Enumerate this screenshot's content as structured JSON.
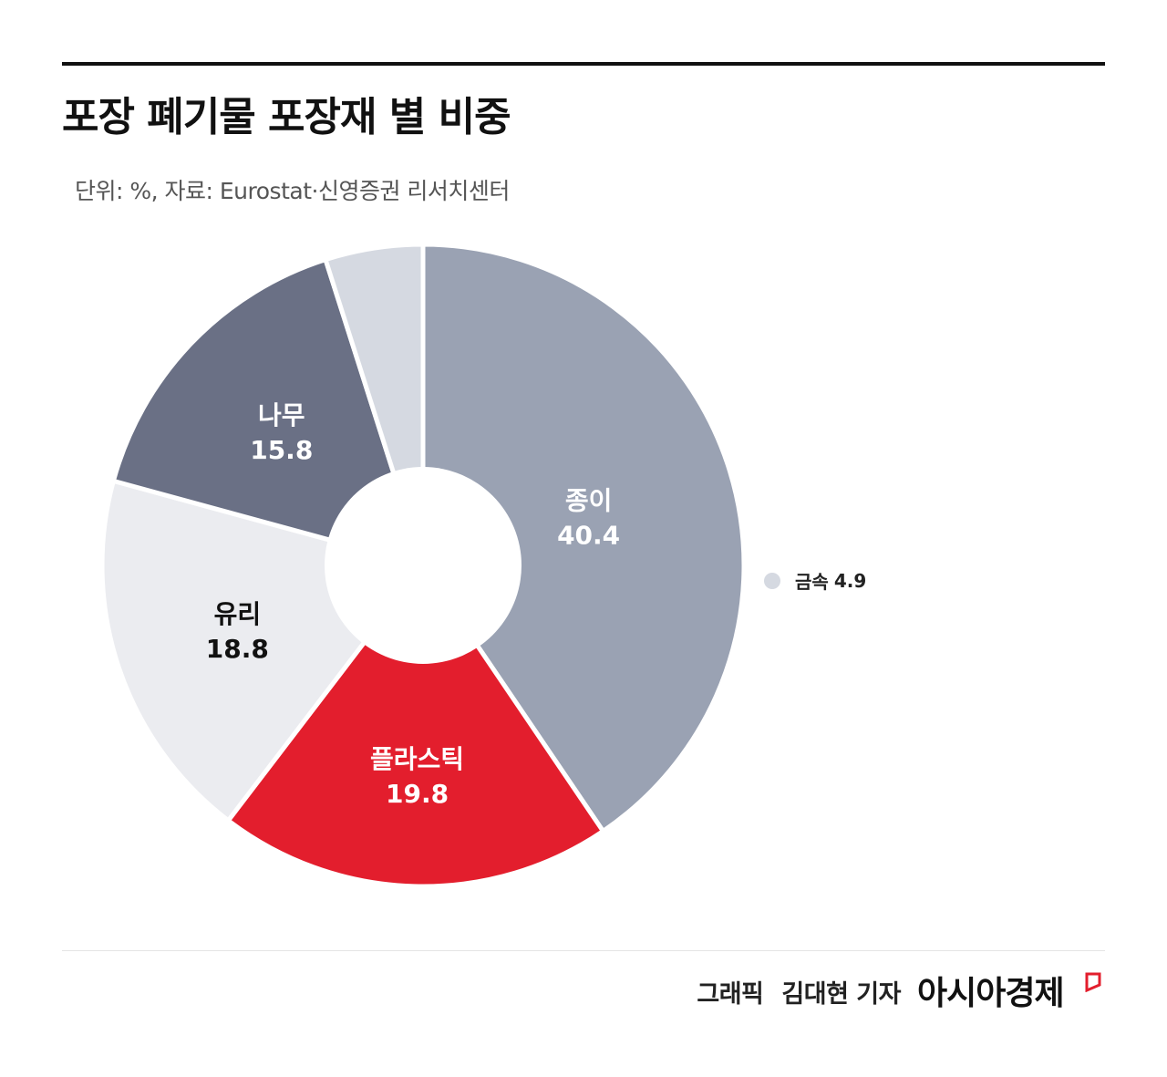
{
  "title": "포장 폐기물 포장재 별 비중",
  "subtitle": "단위: %, 자료: Eurostat·신영증권 리서치센터",
  "chart_data": {
    "type": "pie",
    "title": "포장 폐기물 포장재 별 비중",
    "unit": "%",
    "slices": [
      {
        "label": "종이",
        "value": 40.4,
        "color": "#9aa2b3",
        "text_color": "#ffffff"
      },
      {
        "label": "플라스틱",
        "value": 19.8,
        "color": "#e31e2d",
        "text_color": "#ffffff"
      },
      {
        "label": "유리",
        "value": 18.8,
        "color": "#ebecf0",
        "text_color": "#111111"
      },
      {
        "label": "나무",
        "value": 15.8,
        "color": "#6a7085",
        "text_color": "#ffffff"
      },
      {
        "label": "금속",
        "value": 4.9,
        "color": "#d5d9e1",
        "text_color": "#111111"
      }
    ],
    "legend": {
      "label": "금속",
      "value": "4.9"
    }
  },
  "credit": {
    "role": "그래픽",
    "author": "김대현 기자"
  },
  "brand": "아시아경제",
  "brand_color": "#e31e2d"
}
